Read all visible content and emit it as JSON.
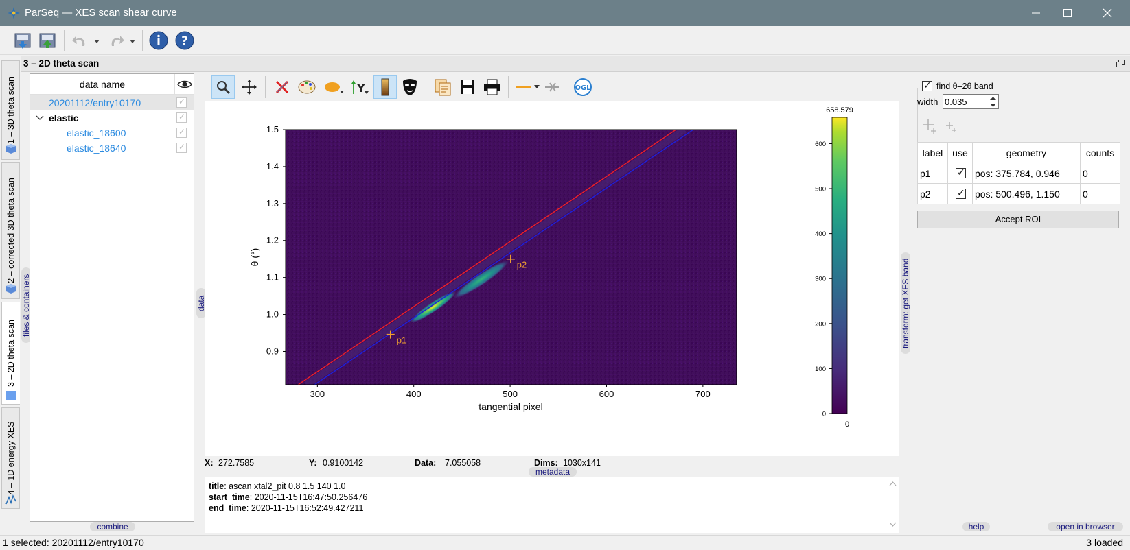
{
  "window": {
    "title": "ParSeq  —  XES scan shear curve"
  },
  "node_title": "3 – 2D theta scan",
  "tabs": [
    {
      "label": "1 – 3D theta scan"
    },
    {
      "label": "2 – corrected 3D theta scan"
    },
    {
      "label": "3 – 2D theta scan"
    },
    {
      "label": "4 – 1D energy XES"
    }
  ],
  "side_labels": {
    "files": "files & containers",
    "data": "data",
    "combine": "combine",
    "metadata": "metadata",
    "transform": "transform: get XES band",
    "help": "help",
    "open_browser": "open in browser"
  },
  "tree": {
    "header": "data name",
    "items": [
      {
        "label": "20201112/entry10170",
        "selected": true
      },
      {
        "label": "elastic",
        "group": true
      },
      {
        "label": "elastic_18600"
      },
      {
        "label": "elastic_18640"
      }
    ]
  },
  "position_info": {
    "x_label": "X:",
    "x_value": "272.7585",
    "y_label": "Y:",
    "y_value": "0.9100142",
    "data_label": "Data:",
    "data_value": "7.055058",
    "dims_label": "Dims:",
    "dims_value": "1030x141"
  },
  "metadata": {
    "title_key": "title",
    "title_val": ": ascan xtal2_pit 0.8 1.5 140 1.0",
    "start_key": "start_time",
    "start_val": ": 2020-11-15T16:47:50.256476",
    "end_key": "end_time",
    "end_val": ": 2020-11-15T16:52:49.427211"
  },
  "right_panel": {
    "find_band_label": "find θ–2θ band",
    "width_label": "width",
    "width_value": "0.035",
    "table_headers": [
      "label",
      "use",
      "geometry",
      "counts"
    ],
    "rows": [
      {
        "label": "p1",
        "use": true,
        "geometry": "pos: 375.784, 0.946",
        "counts": "0"
      },
      {
        "label": "p2",
        "use": true,
        "geometry": "pos: 500.496, 1.150",
        "counts": "0"
      }
    ],
    "accept_label": "Accept ROI"
  },
  "status": {
    "left": "1 selected: 20201112/entry10170",
    "right": "3 loaded"
  },
  "chart_data": {
    "type": "heatmap",
    "xlabel": "tangential pixel",
    "ylabel": "θ (°)",
    "xlim": [
      267,
      735
    ],
    "ylim": [
      0.81,
      1.5
    ],
    "x_ticks": [
      300,
      400,
      500,
      600,
      700
    ],
    "y_ticks": [
      0.9,
      1.0,
      1.1,
      1.2,
      1.3,
      1.4,
      1.5
    ],
    "colormap": "viridis",
    "colorbar": {
      "max": 658.579,
      "min": 0,
      "ticks": [
        0,
        100,
        200,
        300,
        400,
        500,
        600
      ]
    },
    "ridge": [
      {
        "x": 420,
        "y": 1.02,
        "intensity": 1.0
      },
      {
        "x": 470,
        "y": 1.095,
        "intensity": 0.55
      }
    ],
    "lines": [
      {
        "name": "red",
        "color": "#e8202a",
        "x1": 280,
        "y1": 0.81,
        "x2": 672,
        "y2": 1.5
      },
      {
        "name": "blue",
        "color": "#2020d8",
        "x1": 297,
        "y1": 0.81,
        "x2": 690,
        "y2": 1.5
      }
    ],
    "markers": [
      {
        "label": "p1",
        "x": 375.784,
        "y": 0.946
      },
      {
        "label": "p2",
        "x": 500.496,
        "y": 1.15
      }
    ],
    "marker_color": "#f0a030"
  }
}
